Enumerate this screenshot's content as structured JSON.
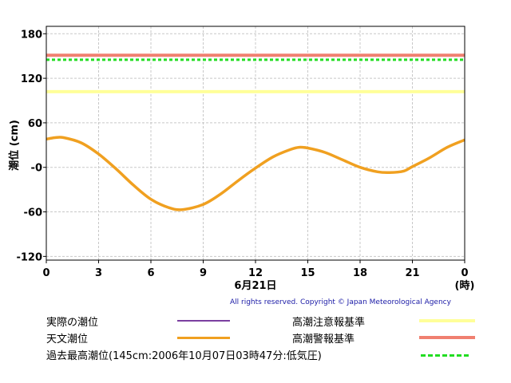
{
  "chart_data": {
    "type": "line",
    "ylabel": "潮位 (cm)",
    "xlabel": "6月21日",
    "x_unit": "(時)",
    "xlim": [
      0,
      24
    ],
    "ylim": [
      -125,
      190
    ],
    "x_ticks": [
      "0",
      "3",
      "6",
      "9",
      "12",
      "15",
      "18",
      "21",
      "0"
    ],
    "y_ticks": [
      "180",
      "120",
      "60",
      "-0",
      "-60",
      "-120"
    ],
    "y_tick_values": [
      180,
      120,
      60,
      0,
      -60,
      -120
    ],
    "grid": true,
    "series": [
      {
        "name": "天文潮位",
        "color": "#f0a020",
        "x": [
          0,
          0.5,
          1,
          2,
          3,
          4,
          5,
          6,
          7,
          7.8,
          9,
          10,
          11,
          12,
          13,
          14,
          14.5,
          15,
          16,
          17,
          18,
          19,
          19.7,
          20.5,
          21,
          22,
          23,
          24
        ],
        "y": [
          38,
          40,
          40,
          33,
          18,
          -2,
          -24,
          -43,
          -54,
          -57,
          -50,
          -36,
          -18,
          -1,
          14,
          24,
          27,
          26,
          20,
          10,
          0,
          -6,
          -7,
          -5,
          1,
          13,
          27,
          37
        ]
      },
      {
        "name": "高潮警報基準",
        "color": "#f08070",
        "value": 151
      },
      {
        "name": "過去最高潮位",
        "color": "#22dd22",
        "value": 145
      },
      {
        "name": "高潮注意報基準",
        "color": "#ffff99",
        "value": 102
      }
    ]
  },
  "copyright": "All rights reserved. Copyright © Japan Meteorological Agency",
  "legend": {
    "actual": {
      "label": "実際の潮位",
      "color": "#7b3fa0"
    },
    "astronomical": {
      "label": "天文潮位",
      "color": "#f0a020"
    },
    "record": {
      "label": "過去最高潮位(145cm:2006年10月07日03時47分:低気圧)",
      "color": "#22dd22"
    },
    "caution": {
      "label": "高潮注意報基準",
      "color": "#ffff99"
    },
    "warning": {
      "label": "高潮警報基準",
      "color": "#f08070"
    }
  }
}
